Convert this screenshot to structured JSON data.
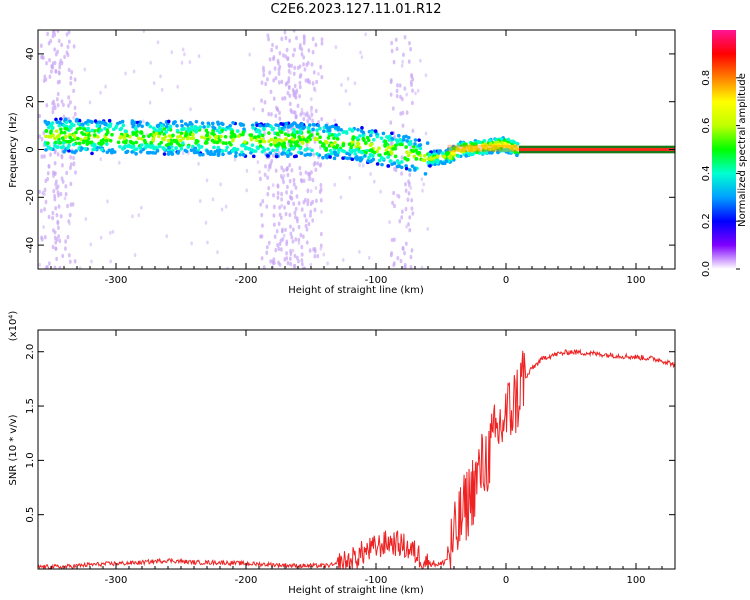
{
  "title": "C2E6.2023.127.11.01.R12",
  "chart_data": [
    {
      "type": "heatmap",
      "xlabel": "Height of straight line (km)",
      "ylabel": "Frequency (Hz)",
      "xlim": [
        -360,
        130
      ],
      "ylim": [
        -50,
        50
      ],
      "x_ticks": [
        -300,
        -200,
        -100,
        0,
        100
      ],
      "y_ticks": [
        -40,
        -20,
        0,
        20,
        40
      ],
      "colorbar": {
        "label": "Normalized spectral amplitude",
        "range": [
          0.0,
          1.0
        ],
        "ticks": [
          "0.0",
          "0.2",
          "0.4",
          "0.6",
          "0.8"
        ],
        "colormap": [
          "#ffffff",
          "#7f00ff",
          "#0000ff",
          "#00a0ff",
          "#00ffd0",
          "#00ff00",
          "#c0ff00",
          "#ffff00",
          "#ff8000",
          "#ff0000",
          "#ff1493"
        ]
      },
      "band_center_hz": [
        {
          "x": -355,
          "y": 6
        },
        {
          "x": -300,
          "y": 5
        },
        {
          "x": -250,
          "y": 5
        },
        {
          "x": -200,
          "y": 4
        },
        {
          "x": -160,
          "y": 4
        },
        {
          "x": -120,
          "y": 3
        },
        {
          "x": -100,
          "y": 1
        },
        {
          "x": -80,
          "y": -1
        },
        {
          "x": -60,
          "y": -4
        },
        {
          "x": -45,
          "y": -3
        },
        {
          "x": -35,
          "y": 0
        },
        {
          "x": -20,
          "y": 1
        },
        {
          "x": 0,
          "y": 2
        },
        {
          "x": 10,
          "y": 0
        },
        {
          "x": 130,
          "y": 0
        }
      ],
      "noise_columns_km": [
        -350,
        -340,
        -180,
        -170,
        -160,
        -150,
        -80
      ]
    },
    {
      "type": "line",
      "xlabel": "Height of straight line (km)",
      "ylabel": "SNR (10 * v/v)",
      "y_multiplier": "(x10⁴)",
      "xlim": [
        -360,
        130
      ],
      "ylim": [
        0,
        2.2
      ],
      "x_ticks": [
        -300,
        -200,
        -100,
        0,
        100
      ],
      "y_ticks": [
        0.5,
        1.0,
        1.5,
        2.0
      ],
      "y_tick_labels": [
        "0.5",
        "1.0",
        "1.5",
        "2.0"
      ],
      "color": "#ee2222",
      "series": [
        {
          "x": [
            -360,
            -340,
            -320,
            -300,
            -280,
            -260,
            -240,
            -220,
            -200,
            -180,
            -160,
            -140,
            -130,
            -120,
            -110,
            -100,
            -90,
            -80,
            -70,
            -60,
            -50,
            -45,
            -40,
            -35,
            -30,
            -25,
            -20,
            -15,
            -10,
            -5,
            0,
            5,
            10,
            13,
            15,
            20,
            25,
            30,
            40,
            50,
            60,
            70,
            80,
            90,
            100,
            110,
            120,
            130
          ],
          "y": [
            0.02,
            0.02,
            0.04,
            0.05,
            0.06,
            0.08,
            0.06,
            0.06,
            0.05,
            0.04,
            0.03,
            0.03,
            0.04,
            0.07,
            0.15,
            0.2,
            0.25,
            0.22,
            0.15,
            0.06,
            0.04,
            0.1,
            0.25,
            0.45,
            0.6,
            0.75,
            0.9,
            1.0,
            1.15,
            1.3,
            1.4,
            1.5,
            1.6,
            1.8,
            1.75,
            1.85,
            1.9,
            1.95,
            1.98,
            2.0,
            1.99,
            1.98,
            1.97,
            1.96,
            1.95,
            1.94,
            1.92,
            1.88
          ]
        }
      ]
    }
  ]
}
